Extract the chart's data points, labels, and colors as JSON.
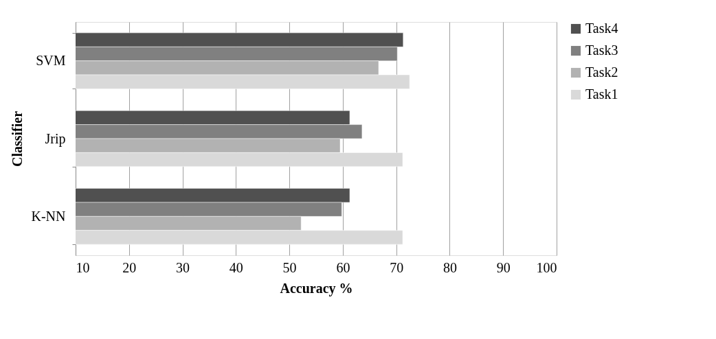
{
  "chart_data": {
    "type": "bar",
    "orientation": "horizontal",
    "xlabel": "Accuracy %",
    "ylabel": "Classifier",
    "categories": [
      "SVM",
      "Jrip",
      "K-NN"
    ],
    "series": [
      {
        "name": "Task4",
        "color": "#505050",
        "values": [
          71.3,
          61.3,
          61.3
        ]
      },
      {
        "name": "Task3",
        "color": "#808080",
        "values": [
          70.2,
          63.6,
          59.8
        ]
      },
      {
        "name": "Task2",
        "color": "#b2b2b2",
        "values": [
          66.7,
          59.5,
          52.2
        ]
      },
      {
        "name": "Task1",
        "color": "#d9d9d9",
        "values": [
          72.5,
          71.2,
          71.2
        ]
      }
    ],
    "xlim": [
      10,
      100
    ],
    "xticks": [
      10,
      20,
      30,
      40,
      50,
      60,
      70,
      80,
      90,
      100
    ],
    "grid": "x",
    "legend": "right"
  }
}
